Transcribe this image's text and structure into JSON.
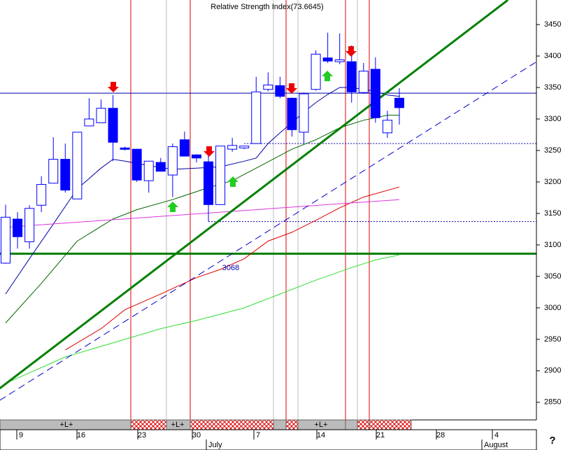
{
  "chart_data": {
    "type": "candlestick",
    "title": "Relative Strength Index(73.6645)",
    "ylim": [
      2822,
      3489
    ],
    "yticks": [
      2850,
      2900,
      2950,
      3000,
      3050,
      3100,
      3150,
      3200,
      3250,
      3300,
      3350,
      3400,
      3450
    ],
    "xtick_labels": [
      "9",
      "16",
      "23",
      "30",
      "7",
      "14",
      "21",
      "28",
      "4"
    ],
    "month_labels": [
      "July",
      "August"
    ],
    "strip_labels": [
      "+L+",
      "+L+",
      "+L+"
    ],
    "annotation": "3068",
    "candles": {
      "color": "#0000ff",
      "open": [
        3071,
        3141,
        3105,
        3163,
        3198,
        3236,
        3173,
        3289,
        3294,
        3317,
        3254,
        3252,
        3202,
        3231,
        3211,
        3267,
        3243,
        3232,
        3164,
        3252,
        3254,
        3261,
        3347,
        3353,
        3333,
        3279,
        3347,
        3397,
        3391,
        3391,
        3342,
        3379,
        3278,
        3333
      ],
      "high": [
        3164,
        3152,
        3163,
        3209,
        3271,
        3261,
        3279,
        3333,
        3331,
        3338,
        3256,
        3252,
        3233,
        3238,
        3261,
        3280,
        3244,
        3242,
        3257,
        3270,
        3257,
        3367,
        3374,
        3367,
        3334,
        3342,
        3409,
        3437,
        3436,
        3417,
        3389,
        3398,
        3313,
        3349
      ],
      "low": [
        3070,
        3094,
        3094,
        3152,
        3198,
        3183,
        3173,
        3289,
        3294,
        3233,
        3250,
        3200,
        3183,
        3217,
        3176,
        3241,
        3231,
        3137,
        3164,
        3248,
        3252,
        3261,
        3344,
        3333,
        3272,
        3261,
        3345,
        3389,
        3387,
        3326,
        3340,
        3294,
        3270,
        3291
      ],
      "close": [
        3144,
        3113,
        3158,
        3196,
        3236,
        3187,
        3279,
        3300,
        3317,
        3263,
        3252,
        3203,
        3233,
        3217,
        3256,
        3241,
        3238,
        3164,
        3257,
        3258,
        3257,
        3343,
        3354,
        3336,
        3283,
        3340,
        3403,
        3392,
        3394,
        3343,
        3376,
        3302,
        3298,
        3318
      ]
    },
    "series": [
      {
        "color": "#0000aa",
        "x": [
          0,
          2,
          4,
          6,
          8,
          9,
          10,
          12,
          14,
          16,
          18,
          20,
          21,
          22,
          23,
          24,
          25,
          26,
          27,
          28,
          29,
          30,
          31,
          32,
          33
        ],
        "values": [
          3022,
          3078,
          3133,
          3189,
          3222,
          3236,
          3233,
          3226,
          3220,
          3222,
          3224,
          3233,
          3238,
          3261,
          3278,
          3294,
          3311,
          3326,
          3339,
          3350,
          3350,
          3347,
          3344,
          3338,
          3336
        ]
      },
      {
        "color": "#006600",
        "x": [
          0,
          3,
          6,
          9,
          11,
          14,
          17,
          19,
          21,
          23,
          24,
          26,
          28,
          30,
          32,
          33
        ],
        "values": [
          2976,
          3039,
          3106,
          3141,
          3156,
          3172,
          3191,
          3202,
          3222,
          3242,
          3252,
          3267,
          3286,
          3298,
          3306,
          3306
        ]
      },
      {
        "color": "#dd0000",
        "x": [
          5,
          8,
          10,
          13,
          16,
          18,
          20,
          22,
          24,
          26,
          28,
          30,
          33
        ],
        "values": [
          2933,
          2967,
          2997,
          3022,
          3048,
          3061,
          3078,
          3106,
          3120,
          3139,
          3159,
          3176,
          3192
        ]
      },
      {
        "color": "#33dd33",
        "x": [
          0,
          5,
          10,
          13,
          16,
          20,
          23,
          26,
          29,
          31,
          33
        ],
        "values": [
          2880,
          2922,
          2950,
          2967,
          2980,
          3000,
          3022,
          3044,
          3064,
          3076,
          3084
        ]
      },
      {
        "color": "#dd33dd",
        "x": [
          0,
          33
        ],
        "values": [
          3128,
          3172
        ]
      }
    ],
    "trendlines": [
      {
        "color": "#008000",
        "width": 3,
        "dash": false,
        "x": [
          -0.5,
          42.1
        ],
        "values": [
          2872,
          3489
        ]
      },
      {
        "color": "#0000cc",
        "width": 1,
        "dash": true,
        "x": [
          -0.5,
          44.5
        ],
        "values": [
          2853,
          3391
        ]
      }
    ],
    "levels": [
      {
        "color": "#0000aa",
        "width": 1,
        "dotted": false,
        "from": -1,
        "value": 3341
      },
      {
        "color": "#008000",
        "width": 3,
        "dotted": false,
        "from": -1,
        "value": 3086
      },
      {
        "color": "#0000aa",
        "width": 1,
        "dotted": true,
        "from": 20,
        "value": 3261
      },
      {
        "color": "#0000aa",
        "width": 1,
        "dotted": true,
        "from": 17,
        "value": 3137
      }
    ]
  }
}
